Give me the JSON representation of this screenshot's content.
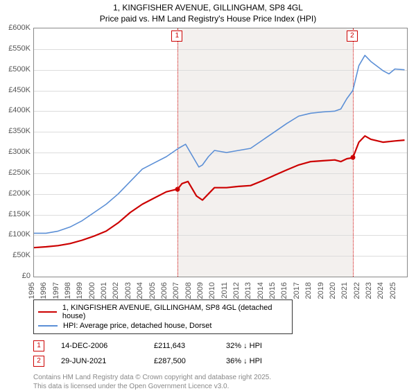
{
  "title": "1, KINGFISHER AVENUE, GILLINGHAM, SP8 4GL",
  "subtitle": "Price paid vs. HM Land Registry's House Price Index (HPI)",
  "chart": {
    "type": "line",
    "background_color": "#ffffff",
    "shaded_color": "#f3f0ee",
    "grid_color": "#dcdcdc",
    "axis_color": "#888888",
    "title_fontsize": 12,
    "label_fontsize": 11,
    "x_years": [
      1995,
      1996,
      1997,
      1998,
      1999,
      2000,
      2001,
      2002,
      2003,
      2004,
      2005,
      2006,
      2007,
      2008,
      2009,
      2010,
      2011,
      2012,
      2013,
      2014,
      2015,
      2016,
      2017,
      2018,
      2019,
      2020,
      2021,
      2022,
      2023,
      2024,
      2025
    ],
    "xlim": [
      1995,
      2026
    ],
    "ylim": [
      0,
      600000
    ],
    "ytick_step": 50000,
    "y_prefix": "£",
    "y_ticks": [
      "£0",
      "£50K",
      "£100K",
      "£150K",
      "£200K",
      "£250K",
      "£300K",
      "£350K",
      "£400K",
      "£450K",
      "£500K",
      "£550K",
      "£600K"
    ],
    "shaded_start_year": 2006.95,
    "shaded_end_year": 2021.5,
    "markers": [
      {
        "n": "1",
        "year": 2006.95,
        "date": "14-DEC-2006",
        "price": "£211,643",
        "pct": "32% ↓ HPI",
        "dot_y": 211643
      },
      {
        "n": "2",
        "year": 2021.5,
        "date": "29-JUN-2021",
        "price": "£287,500",
        "pct": "36% ↓ HPI",
        "dot_y": 287500
      }
    ],
    "series": [
      {
        "name": "1, KINGFISHER AVENUE, GILLINGHAM, SP8 4GL (detached house)",
        "color": "#cc0000",
        "line_width": 2.2,
        "data": [
          [
            1995,
            70000
          ],
          [
            1996,
            72000
          ],
          [
            1997,
            75000
          ],
          [
            1998,
            80000
          ],
          [
            1999,
            88000
          ],
          [
            2000,
            98000
          ],
          [
            2001,
            110000
          ],
          [
            2002,
            130000
          ],
          [
            2003,
            155000
          ],
          [
            2004,
            175000
          ],
          [
            2005,
            190000
          ],
          [
            2006,
            205000
          ],
          [
            2006.95,
            211643
          ],
          [
            2007.3,
            225000
          ],
          [
            2007.8,
            230000
          ],
          [
            2008.5,
            195000
          ],
          [
            2009,
            185000
          ],
          [
            2009.5,
            200000
          ],
          [
            2010,
            215000
          ],
          [
            2011,
            215000
          ],
          [
            2012,
            218000
          ],
          [
            2013,
            220000
          ],
          [
            2014,
            232000
          ],
          [
            2015,
            245000
          ],
          [
            2016,
            258000
          ],
          [
            2017,
            270000
          ],
          [
            2018,
            278000
          ],
          [
            2019,
            280000
          ],
          [
            2020,
            282000
          ],
          [
            2020.5,
            278000
          ],
          [
            2021,
            285000
          ],
          [
            2021.5,
            287500
          ],
          [
            2022,
            325000
          ],
          [
            2022.5,
            340000
          ],
          [
            2023,
            332000
          ],
          [
            2024,
            325000
          ],
          [
            2025,
            328000
          ],
          [
            2025.8,
            330000
          ]
        ]
      },
      {
        "name": "HPI: Average price, detached house, Dorset",
        "color": "#5b8fd6",
        "line_width": 1.6,
        "data": [
          [
            1995,
            105000
          ],
          [
            1996,
            105000
          ],
          [
            1997,
            110000
          ],
          [
            1998,
            120000
          ],
          [
            1999,
            135000
          ],
          [
            2000,
            155000
          ],
          [
            2001,
            175000
          ],
          [
            2002,
            200000
          ],
          [
            2003,
            230000
          ],
          [
            2004,
            260000
          ],
          [
            2005,
            275000
          ],
          [
            2006,
            290000
          ],
          [
            2007,
            310000
          ],
          [
            2007.6,
            320000
          ],
          [
            2008,
            300000
          ],
          [
            2008.7,
            265000
          ],
          [
            2009,
            270000
          ],
          [
            2009.5,
            290000
          ],
          [
            2010,
            305000
          ],
          [
            2011,
            300000
          ],
          [
            2012,
            305000
          ],
          [
            2013,
            310000
          ],
          [
            2014,
            330000
          ],
          [
            2015,
            350000
          ],
          [
            2016,
            370000
          ],
          [
            2017,
            388000
          ],
          [
            2018,
            395000
          ],
          [
            2019,
            398000
          ],
          [
            2020,
            400000
          ],
          [
            2020.5,
            405000
          ],
          [
            2021,
            430000
          ],
          [
            2021.5,
            450000
          ],
          [
            2022,
            510000
          ],
          [
            2022.5,
            535000
          ],
          [
            2023,
            520000
          ],
          [
            2024,
            498000
          ],
          [
            2024.5,
            490000
          ],
          [
            2025,
            502000
          ],
          [
            2025.8,
            500000
          ]
        ]
      }
    ]
  },
  "legend": {
    "items": [
      {
        "label": "1, KINGFISHER AVENUE, GILLINGHAM, SP8 4GL (detached house)",
        "color": "#cc0000",
        "width": 2.2
      },
      {
        "label": "HPI: Average price, detached house, Dorset",
        "color": "#5b8fd6",
        "width": 1.6
      }
    ]
  },
  "credits": {
    "line1": "Contains HM Land Registry data © Crown copyright and database right 2025.",
    "line2": "This data is licensed under the Open Government Licence v3.0."
  }
}
